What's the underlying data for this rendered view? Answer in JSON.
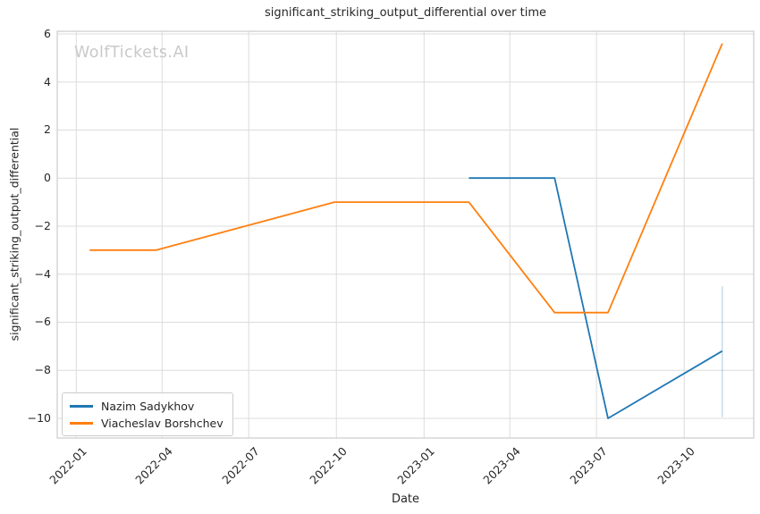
{
  "watermark": "WolfTickets.AI",
  "colors": {
    "background": "#ffffff",
    "grid": "#dcdcdc",
    "spine": "#cccccc",
    "text": "#262626",
    "watermark": "#c9c9c9",
    "errorbar": "rgba(31,119,180,0.32)"
  },
  "chart_data": {
    "type": "line",
    "title": "significant_striking_output_differential over time",
    "xlabel": "Date",
    "ylabel": "significant_striking_output_differential",
    "grid": true,
    "legend_position": "lower left",
    "x_axis": {
      "kind": "date",
      "range": [
        "2021-12-12",
        "2023-12-13"
      ],
      "ticks": [
        {
          "date": "2022-01-01",
          "label": "2022-01"
        },
        {
          "date": "2022-04-01",
          "label": "2022-04"
        },
        {
          "date": "2022-07-01",
          "label": "2022-07"
        },
        {
          "date": "2022-10-01",
          "label": "2022-10"
        },
        {
          "date": "2023-01-01",
          "label": "2023-01"
        },
        {
          "date": "2023-04-01",
          "label": "2023-04"
        },
        {
          "date": "2023-07-01",
          "label": "2023-07"
        },
        {
          "date": "2023-10-01",
          "label": "2023-10"
        }
      ]
    },
    "y_axis": {
      "range": [
        -10.82,
        6.11
      ],
      "ticks": [
        {
          "value": 6,
          "label": "6"
        },
        {
          "value": 4,
          "label": "4"
        },
        {
          "value": 2,
          "label": "2"
        },
        {
          "value": 0,
          "label": "0"
        },
        {
          "value": -2,
          "label": "−2"
        },
        {
          "value": -4,
          "label": "−4"
        },
        {
          "value": -6,
          "label": "−6"
        },
        {
          "value": -8,
          "label": "−8"
        },
        {
          "value": -10,
          "label": "−10"
        }
      ]
    },
    "series": [
      {
        "name": "Nazim Sadykhov",
        "color": "#1f77b4",
        "points": [
          {
            "date": "2023-02-17",
            "value": 0
          },
          {
            "date": "2023-05-18",
            "value": 0
          },
          {
            "date": "2023-07-13",
            "value": -10
          },
          {
            "date": "2023-11-10",
            "value": -7.2
          }
        ],
        "errorbars": [
          {
            "date": "2023-11-10",
            "high": -4.5,
            "low": -9.95
          }
        ]
      },
      {
        "name": "Viacheslav Borshchev",
        "color": "#ff7f0e",
        "points": [
          {
            "date": "2022-01-15",
            "value": -3
          },
          {
            "date": "2022-03-26",
            "value": -3
          },
          {
            "date": "2022-09-29",
            "value": -1
          },
          {
            "date": "2023-02-17",
            "value": -1
          },
          {
            "date": "2023-05-18",
            "value": -5.6
          },
          {
            "date": "2023-07-13",
            "value": -5.6
          },
          {
            "date": "2023-11-10",
            "value": 5.6
          }
        ],
        "errorbars": []
      }
    ]
  }
}
